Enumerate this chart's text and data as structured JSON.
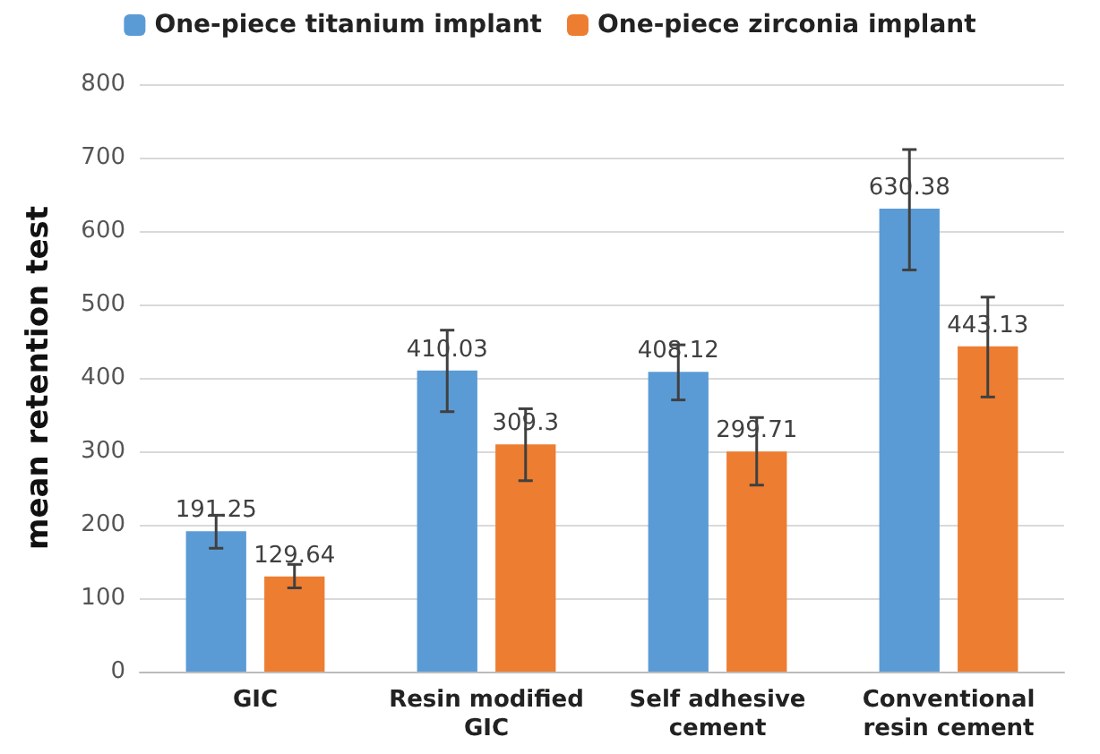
{
  "chart_data": {
    "type": "bar",
    "ylabel": "mean retention test",
    "categories": [
      "GIC",
      "Resin modified\nGIC",
      "Self adhesive\ncement",
      "Conventional\nresin cement"
    ],
    "series": [
      {
        "name": "One-piece titanium implant",
        "color": "#5b9bd5",
        "values": [
          191.25,
          410.03,
          408.12,
          630.38
        ],
        "errors": [
          [
            168,
            213
          ],
          [
            354,
            465
          ],
          [
            370,
            445
          ],
          [
            547,
            711
          ]
        ]
      },
      {
        "name": "One-piece zirconia implant",
        "color": "#ed7d31",
        "values": [
          129.64,
          309.3,
          299.71,
          443.13
        ],
        "errors": [
          [
            114,
            146
          ],
          [
            260,
            358
          ],
          [
            254,
            346
          ],
          [
            374,
            510
          ]
        ]
      }
    ],
    "ylim": [
      0,
      800
    ],
    "yticks": [
      0,
      100,
      200,
      300,
      400,
      500,
      600,
      700,
      800
    ],
    "grid": "y",
    "legend": "top",
    "data_labels": true
  }
}
